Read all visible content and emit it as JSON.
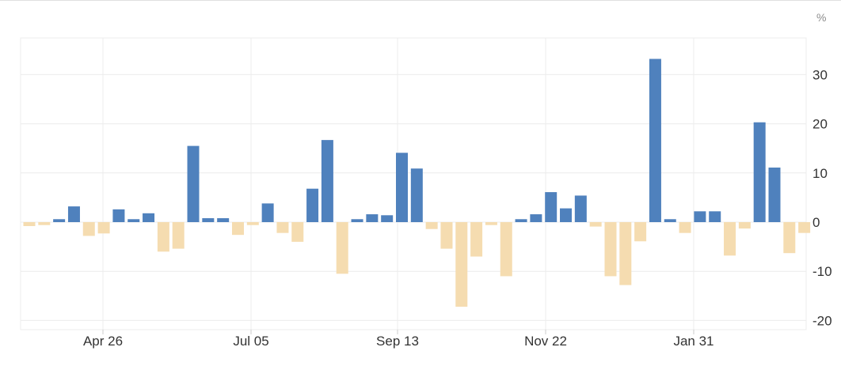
{
  "chart_data": {
    "type": "bar",
    "unit_label": "%",
    "y_ticks": [
      30,
      20,
      10,
      0,
      -10,
      -20
    ],
    "x_ticks": [
      "Apr 26",
      "Jul 05",
      "Sep 13",
      "Nov 22",
      "Jan 31"
    ],
    "ylim": [
      -21.5,
      37
    ],
    "grid": true,
    "legend": "none",
    "colors": {
      "positive": "#4f81bd",
      "negative": "#f5dcb0",
      "grid": "#ececec",
      "axis_text": "#333333"
    },
    "values": [
      -0.8,
      -0.6,
      0.6,
      3.2,
      -2.8,
      -2.3,
      2.6,
      0.6,
      1.8,
      -6.0,
      -5.4,
      15.5,
      0.8,
      0.8,
      -2.6,
      -0.6,
      3.8,
      -2.2,
      -4.0,
      6.8,
      16.7,
      -10.5,
      0.6,
      1.6,
      1.4,
      14.1,
      10.9,
      -1.4,
      -5.4,
      -17.2,
      -7.0,
      -0.6,
      -11.0,
      0.6,
      1.6,
      6.1,
      2.8,
      5.4,
      -0.9,
      -11.0,
      -12.8,
      -3.9,
      33.2,
      0.6,
      -2.2,
      2.2,
      2.2,
      -6.8,
      -1.3,
      20.3,
      11.1,
      -6.3,
      -2.2
    ]
  }
}
